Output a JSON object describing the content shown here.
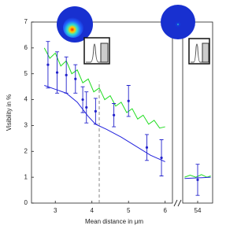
{
  "chart_data": [
    {
      "type": "line",
      "y_label": "Visibility in %",
      "x_label": "Mean distance in μm",
      "xlim": [
        2.35,
        6.2
      ],
      "xticks": [
        3,
        4,
        5,
        6
      ],
      "ylim": [
        0,
        7
      ],
      "yticks": [
        0,
        1,
        2,
        3,
        4,
        5,
        6,
        7
      ],
      "vline": 4.2,
      "series": [
        {
          "style": "line",
          "color": "#22dd22",
          "x": [
            2.7,
            2.85,
            3.0,
            3.15,
            3.3,
            3.45,
            3.6,
            3.75,
            3.9,
            4.05,
            4.2,
            4.35,
            4.5,
            4.65,
            4.8,
            4.95,
            5.1,
            5.25,
            5.4,
            5.55,
            5.7,
            5.85,
            6.0
          ],
          "values": [
            6.0,
            5.6,
            5.8,
            5.3,
            5.5,
            5.0,
            5.15,
            4.65,
            4.8,
            4.3,
            4.45,
            4.0,
            4.15,
            3.75,
            3.9,
            3.5,
            3.65,
            3.25,
            3.4,
            3.05,
            3.2,
            2.9,
            2.95
          ]
        },
        {
          "style": "line",
          "color": "#2222dd",
          "x": [
            2.7,
            3.0,
            3.3,
            3.6,
            3.9,
            4.1,
            4.4,
            4.8,
            5.2,
            5.6,
            6.0
          ],
          "values": [
            4.55,
            4.4,
            4.25,
            3.9,
            3.35,
            3.05,
            2.85,
            2.55,
            2.2,
            1.85,
            1.6
          ]
        },
        {
          "style": "points",
          "color": "#2222cc",
          "x": [
            2.8,
            3.05,
            3.3,
            3.55,
            3.75,
            3.85,
            4.1,
            4.6,
            5.0,
            5.5,
            5.9
          ],
          "values": [
            5.35,
            5.05,
            4.95,
            4.8,
            4.0,
            3.7,
            3.55,
            3.4,
            3.95,
            2.15,
            1.75
          ],
          "errors": [
            0.9,
            0.8,
            0.7,
            0.55,
            0.5,
            0.6,
            0.5,
            0.45,
            0.6,
            0.5,
            0.7
          ]
        }
      ]
    },
    {
      "type": "line",
      "xlim": [
        53.2,
        54.8
      ],
      "xticks": [
        54
      ],
      "ylim": [
        0,
        7
      ],
      "series": [
        {
          "style": "line",
          "color": "#22dd22",
          "x": [
            53.3,
            53.6,
            53.9,
            54.2,
            54.5,
            54.7
          ],
          "values": [
            1.0,
            1.08,
            1.0,
            1.1,
            1.0,
            1.05
          ]
        },
        {
          "style": "line",
          "color": "#2222dd",
          "x": [
            53.3,
            54.7
          ],
          "values": [
            0.95,
            1.0
          ]
        },
        {
          "style": "points",
          "color": "#2222cc",
          "x": [
            54
          ],
          "values": [
            0.9
          ],
          "errors": [
            0.6
          ]
        }
      ]
    }
  ]
}
